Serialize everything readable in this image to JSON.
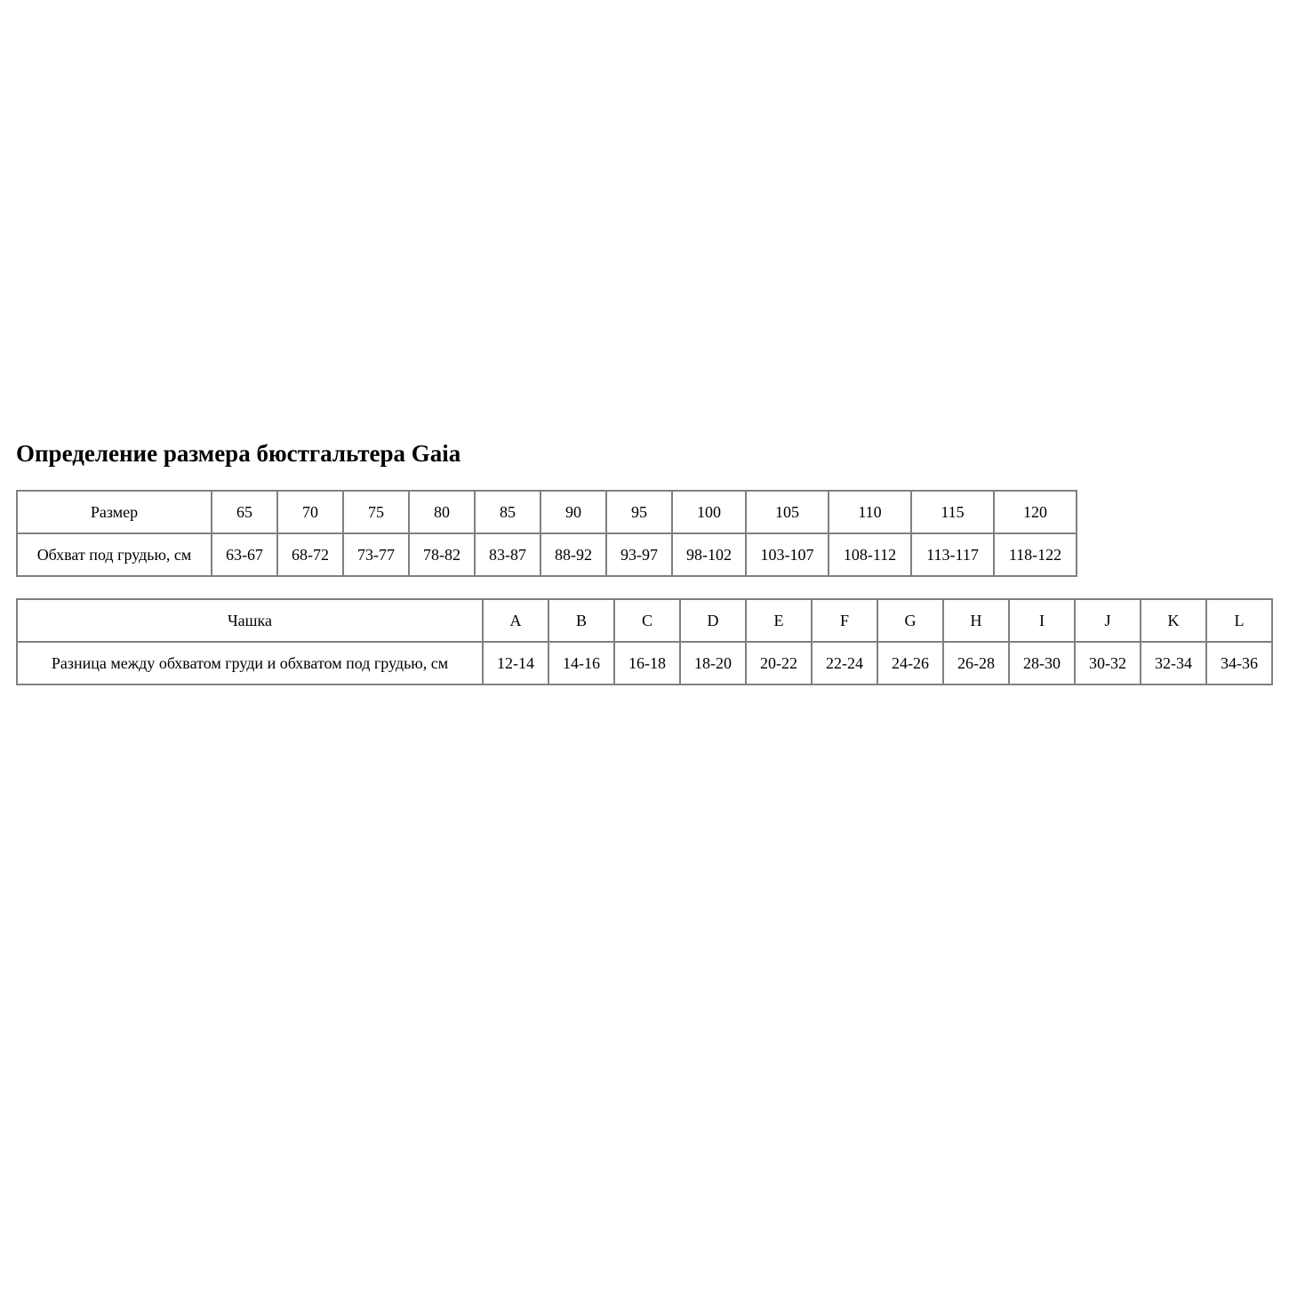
{
  "title": "Определение размера бюстгальтера Gaia",
  "band_table": {
    "row_headers": [
      "Размер",
      "Обхват под грудью, см"
    ],
    "sizes": [
      "65",
      "70",
      "75",
      "80",
      "85",
      "90",
      "95",
      "100",
      "105",
      "110",
      "115",
      "120"
    ],
    "underbust": [
      "63-67",
      "68-72",
      "73-77",
      "78-82",
      "83-87",
      "88-92",
      "93-97",
      "98-102",
      "103-107",
      "108-112",
      "113-117",
      "118-122"
    ]
  },
  "cup_table": {
    "row_headers": [
      "Чашка",
      "Разница между обхватом груди и обхватом под грудью, см"
    ],
    "cups": [
      "A",
      "B",
      "C",
      "D",
      "E",
      "F",
      "G",
      "H",
      "I",
      "J",
      "K",
      "L"
    ],
    "differences": [
      "12-14",
      "14-16",
      "16-18",
      "18-20",
      "20-22",
      "22-24",
      "24-26",
      "26-28",
      "28-30",
      "30-32",
      "32-34",
      "34-36"
    ]
  }
}
